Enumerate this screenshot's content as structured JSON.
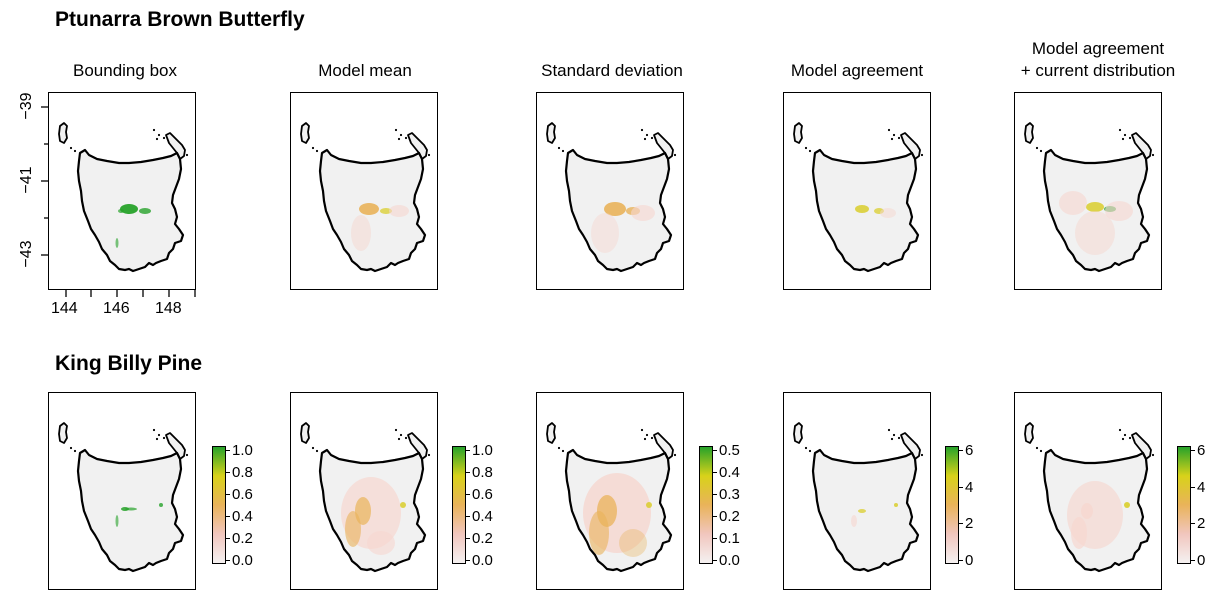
{
  "figure": {
    "sections": [
      {
        "title": "Ptunarra Brown Butterfly"
      },
      {
        "title": "King Billy Pine"
      }
    ],
    "column_titles": [
      "Bounding box",
      "Model mean",
      "Standard deviation",
      "Model agreement",
      "Model agreement\n+ current distribution"
    ],
    "axes": {
      "lat_ticks": [
        "−39",
        "−41",
        "−43"
      ],
      "lon_ticks": [
        "144",
        "146",
        "148"
      ]
    },
    "legends": [
      {
        "ticks": [
          "1.0",
          "0.8",
          "0.6",
          "0.4",
          "0.2",
          "0.0"
        ]
      },
      {
        "ticks": [
          "1.0",
          "0.8",
          "0.6",
          "0.4",
          "0.2",
          "0.0"
        ]
      },
      {
        "ticks": [
          "0.5",
          "0.4",
          "0.3",
          "0.2",
          "0.1",
          "0.0"
        ]
      },
      {
        "ticks": [
          "6",
          "4",
          "2",
          "0"
        ]
      },
      {
        "ticks": [
          "6",
          "4",
          "2",
          "0"
        ]
      }
    ],
    "colors": {
      "land": "#f1f1f1",
      "low": "#f6d7d0",
      "mid": "#e9b35a",
      "mid2": "#d8cc20",
      "high": "#27a22a",
      "coast": "#000000"
    },
    "legend_gradient": [
      "#f5f1f1",
      "#f1c6be",
      "#e9b35a",
      "#d8d21a",
      "#27a22a"
    ]
  }
}
